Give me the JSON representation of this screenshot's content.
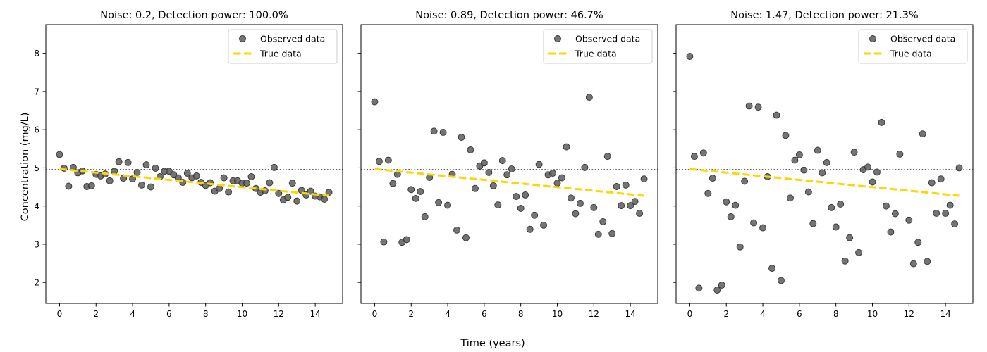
{
  "figure": {
    "xlabel": "Time (years)",
    "ylabel": "Concentration (mg/L)"
  },
  "chart_data": [
    {
      "type": "scatter",
      "title": "Noise: 0.2, Detection power: 100.0%",
      "xlim": [
        -0.75,
        15.5
      ],
      "ylim": [
        1.45,
        8.75
      ],
      "xticks": [
        0,
        2,
        4,
        6,
        8,
        10,
        12,
        14
      ],
      "yticks": [
        2,
        3,
        4,
        5,
        6,
        7,
        8
      ],
      "show_yticklabels": true,
      "grid": false,
      "legend_position": "upper right",
      "reference_line": {
        "y": 4.95,
        "style": "dotted",
        "color": "#000000"
      },
      "series": [
        {
          "name": "Observed data",
          "kind": "scatter",
          "color": "#555555",
          "x": [
            0,
            0.25,
            0.5,
            0.75,
            1,
            1.25,
            1.5,
            1.75,
            2,
            2.25,
            2.5,
            2.75,
            3,
            3.25,
            3.5,
            3.75,
            4,
            4.25,
            4.5,
            4.75,
            5,
            5.25,
            5.5,
            5.75,
            6,
            6.25,
            6.5,
            6.75,
            7,
            7.25,
            7.5,
            7.75,
            8,
            8.25,
            8.5,
            8.75,
            9,
            9.25,
            9.5,
            9.75,
            10,
            10.25,
            10.5,
            10.75,
            11,
            11.25,
            11.5,
            11.75,
            12,
            12.25,
            12.5,
            12.75,
            13,
            13.25,
            13.5,
            13.75,
            14,
            14.25,
            14.5,
            14.75
          ],
          "y": [
            5.35,
            4.99,
            4.52,
            5.01,
            4.87,
            4.92,
            4.51,
            4.53,
            4.83,
            4.79,
            4.84,
            4.66,
            4.91,
            5.16,
            4.73,
            5.14,
            4.71,
            4.88,
            4.55,
            5.08,
            4.5,
            4.99,
            4.77,
            4.91,
            4.91,
            4.82,
            4.74,
            4.62,
            4.86,
            4.74,
            4.79,
            4.62,
            4.54,
            4.61,
            4.39,
            4.46,
            4.74,
            4.37,
            4.66,
            4.66,
            4.6,
            4.6,
            4.77,
            4.46,
            4.36,
            4.4,
            4.61,
            5.01,
            4.33,
            4.16,
            4.23,
            4.6,
            4.13,
            4.41,
            4.29,
            4.39,
            4.26,
            4.24,
            4.18,
            4.36
          ]
        },
        {
          "name": "True data",
          "kind": "line",
          "style": "dashed",
          "color": "#FFD700",
          "x": [
            0,
            14.75
          ],
          "y": [
            4.97,
            4.27
          ]
        }
      ]
    },
    {
      "type": "scatter",
      "title": "Noise: 0.89, Detection power: 46.7%",
      "xlim": [
        -0.75,
        15.5
      ],
      "ylim": [
        1.45,
        8.75
      ],
      "xticks": [
        0,
        2,
        4,
        6,
        8,
        10,
        12,
        14
      ],
      "yticks": [
        2,
        3,
        4,
        5,
        6,
        7,
        8
      ],
      "show_yticklabels": false,
      "grid": false,
      "legend_position": "upper right",
      "reference_line": {
        "y": 4.95,
        "style": "dotted",
        "color": "#000000"
      },
      "series": [
        {
          "name": "Observed data",
          "kind": "scatter",
          "color": "#555555",
          "x": [
            0,
            0.25,
            0.5,
            0.75,
            1,
            1.25,
            1.5,
            1.75,
            2,
            2.25,
            2.5,
            2.75,
            3,
            3.25,
            3.5,
            3.75,
            4,
            4.25,
            4.5,
            4.75,
            5,
            5.25,
            5.5,
            5.75,
            6,
            6.25,
            6.5,
            6.75,
            7,
            7.25,
            7.5,
            7.75,
            8,
            8.25,
            8.5,
            8.75,
            9,
            9.25,
            9.5,
            9.75,
            10,
            10.25,
            10.5,
            10.75,
            11,
            11.25,
            11.5,
            11.75,
            12,
            12.25,
            12.5,
            12.75,
            13,
            13.25,
            13.5,
            13.75,
            14,
            14.25,
            14.5,
            14.75
          ],
          "y": [
            6.73,
            5.17,
            3.06,
            5.2,
            4.59,
            4.83,
            3.05,
            3.12,
            4.43,
            4.2,
            4.38,
            3.72,
            4.75,
            5.96,
            4.09,
            5.93,
            4.02,
            4.83,
            3.37,
            5.8,
            3.17,
            5.47,
            4.46,
            5.05,
            5.13,
            4.88,
            4.53,
            4.03,
            5.19,
            4.82,
            4.97,
            4.25,
            3.94,
            4.29,
            3.39,
            3.76,
            5.09,
            3.5,
            4.82,
            4.86,
            4.6,
            4.74,
            5.55,
            4.21,
            3.8,
            4.07,
            5.01,
            6.85,
            3.96,
            3.26,
            3.59,
            5.3,
            3.28,
            4.51,
            4.01,
            4.55,
            4.01,
            4.12,
            3.81,
            4.71
          ]
        },
        {
          "name": "True data",
          "kind": "line",
          "style": "dashed",
          "color": "#FFD700",
          "x": [
            0,
            14.75
          ],
          "y": [
            4.97,
            4.27
          ]
        }
      ]
    },
    {
      "type": "scatter",
      "title": "Noise: 1.47, Detection power: 21.3%",
      "xlim": [
        -0.75,
        15.5
      ],
      "ylim": [
        1.45,
        8.75
      ],
      "xticks": [
        0,
        2,
        4,
        6,
        8,
        10,
        12,
        14
      ],
      "yticks": [
        2,
        3,
        4,
        5,
        6,
        7,
        8
      ],
      "show_yticklabels": false,
      "grid": false,
      "legend_position": "upper right",
      "reference_line": {
        "y": 4.95,
        "style": "dotted",
        "color": "#000000"
      },
      "series": [
        {
          "name": "Observed data",
          "kind": "scatter",
          "color": "#555555",
          "x": [
            0,
            0.25,
            0.5,
            0.75,
            1,
            1.25,
            1.5,
            1.75,
            2,
            2.25,
            2.5,
            2.75,
            3,
            3.25,
            3.5,
            3.75,
            4,
            4.25,
            4.5,
            4.75,
            5,
            5.25,
            5.5,
            5.75,
            6,
            6.25,
            6.5,
            6.75,
            7,
            7.25,
            7.5,
            7.75,
            8,
            8.25,
            8.5,
            8.75,
            9,
            9.25,
            9.5,
            9.75,
            10,
            10.25,
            10.5,
            10.75,
            11,
            11.25,
            11.5,
            11.75,
            12,
            12.25,
            12.5,
            12.75,
            13,
            13.25,
            13.5,
            13.75,
            14,
            14.25,
            14.5,
            14.75
          ],
          "y": [
            7.92,
            5.3,
            1.85,
            5.39,
            4.33,
            4.73,
            1.8,
            1.93,
            4.11,
            3.72,
            4.02,
            2.93,
            4.65,
            6.62,
            3.56,
            6.59,
            3.43,
            4.77,
            2.37,
            6.38,
            2.05,
            5.85,
            4.21,
            5.2,
            5.34,
            4.94,
            4.37,
            3.54,
            5.46,
            4.87,
            5.14,
            3.96,
            3.45,
            4.05,
            2.56,
            3.17,
            5.41,
            2.78,
            4.95,
            5.02,
            4.63,
            4.89,
            6.19,
            4.0,
            3.32,
            3.8,
            5.36,
            8.4,
            3.63,
            2.49,
            3.05,
            5.89,
            2.55,
            4.61,
            3.81,
            4.71,
            3.81,
            4.02,
            3.53,
            5.0
          ]
        },
        {
          "name": "True data",
          "kind": "line",
          "style": "dashed",
          "color": "#FFD700",
          "x": [
            0,
            14.75
          ],
          "y": [
            4.97,
            4.27
          ]
        }
      ]
    }
  ]
}
